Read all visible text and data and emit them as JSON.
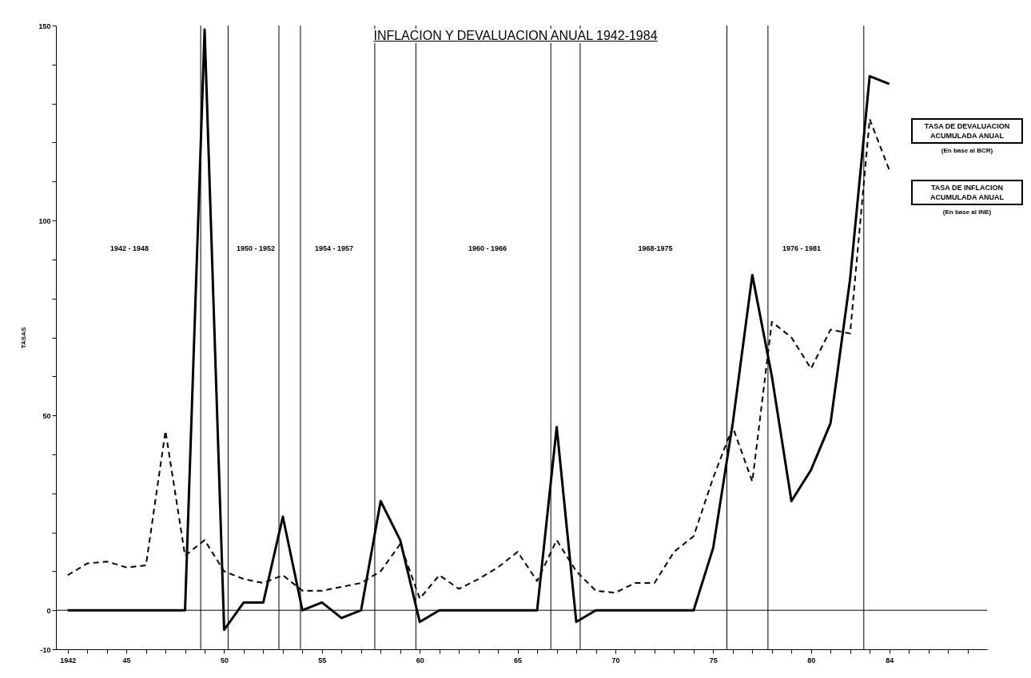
{
  "chart_data": {
    "type": "line",
    "title": "INFLACION Y DEVALUACION ANUAL 1942-1984",
    "ylabel": "TASAS",
    "x": [
      1942,
      1943,
      1944,
      1945,
      1946,
      1947,
      1948,
      1949,
      1950,
      1951,
      1952,
      1953,
      1954,
      1955,
      1956,
      1957,
      1958,
      1959,
      1960,
      1961,
      1962,
      1963,
      1964,
      1965,
      1966,
      1967,
      1968,
      1969,
      1970,
      1971,
      1972,
      1973,
      1974,
      1975,
      1976,
      1977,
      1978,
      1979,
      1980,
      1981,
      1982,
      1983,
      1984
    ],
    "series": [
      {
        "name": "TASA DE DEVALUACION ACUMULADA ANUAL",
        "color": "#000000",
        "line_style": "solid",
        "values": [
          0,
          0,
          0,
          0,
          0,
          0,
          0,
          149,
          -5,
          2,
          2,
          24,
          0,
          2,
          -2,
          0,
          28,
          18,
          -3,
          0,
          0,
          0,
          0,
          0,
          0,
          47,
          -3,
          0,
          0,
          0,
          0,
          0,
          0,
          16,
          48,
          86,
          60,
          28,
          36,
          48,
          85,
          137,
          135
        ]
      },
      {
        "name": "TASA DE INFLACION ACUMULADA ANUAL",
        "color": "#000000",
        "line_style": "dashed",
        "values": [
          9,
          12,
          12.5,
          11,
          11.5,
          46,
          14,
          18,
          10,
          8,
          7,
          9,
          5,
          5,
          6,
          7,
          10,
          17,
          3,
          9,
          5.5,
          8,
          11,
          15,
          7.5,
          18,
          10,
          5,
          4.5,
          7,
          7,
          15,
          19,
          34,
          47,
          33,
          74,
          70,
          62,
          72,
          71,
          126,
          113
        ]
      }
    ],
    "xlim": [
      1941.4,
      1989
    ],
    "xticks": [
      1942,
      {
        "value": 1943,
        "label": null
      },
      {
        "value": 1944,
        "label": null
      },
      {
        "value": 1945,
        "label": "45"
      },
      {
        "value": 1946,
        "label": null
      },
      {
        "value": 1947,
        "label": null
      },
      {
        "value": 1948,
        "label": null
      },
      {
        "value": 1949,
        "label": null
      },
      {
        "value": 1950,
        "label": "50"
      },
      {
        "value": 1951,
        "label": null
      },
      {
        "value": 1952,
        "label": null
      },
      {
        "value": 1953,
        "label": null
      },
      {
        "value": 1954,
        "label": null
      },
      {
        "value": 1955,
        "label": "55"
      },
      {
        "value": 1956,
        "label": null
      },
      {
        "value": 1957,
        "label": null
      },
      {
        "value": 1958,
        "label": null
      },
      {
        "value": 1959,
        "label": null
      },
      {
        "value": 1960,
        "label": "60"
      },
      {
        "value": 1961,
        "label": null
      },
      {
        "value": 1962,
        "label": null
      },
      {
        "value": 1963,
        "label": null
      },
      {
        "value": 1964,
        "label": null
      },
      {
        "value": 1965,
        "label": "65"
      },
      {
        "value": 1966,
        "label": null
      },
      {
        "value": 1967,
        "label": null
      },
      {
        "value": 1968,
        "label": null
      },
      {
        "value": 1969,
        "label": null
      },
      {
        "value": 1970,
        "label": "70"
      },
      {
        "value": 1971,
        "label": null
      },
      {
        "value": 1972,
        "label": null
      },
      {
        "value": 1973,
        "label": null
      },
      {
        "value": 1974,
        "label": null
      },
      {
        "value": 1975,
        "label": "75"
      },
      {
        "value": 1976,
        "label": null
      },
      {
        "value": 1977,
        "label": null
      },
      {
        "value": 1978,
        "label": null
      },
      {
        "value": 1979,
        "label": null
      },
      {
        "value": 1980,
        "label": "80"
      },
      {
        "value": 1981,
        "label": null
      },
      {
        "value": 1982,
        "label": null
      },
      {
        "value": 1983,
        "label": null
      },
      {
        "value": 1984,
        "label": "84"
      },
      {
        "value": 1985,
        "label": null
      },
      {
        "value": 1986,
        "label": null
      },
      {
        "value": 1987,
        "label": null
      },
      {
        "value": 1988,
        "label": null
      }
    ],
    "ylim": [
      -10,
      150
    ],
    "yticks": [
      -10,
      0,
      {
        "value": 10,
        "label": null
      },
      {
        "value": 20,
        "label": null
      },
      {
        "value": 30,
        "label": null
      },
      {
        "value": 40,
        "label": null
      },
      50,
      {
        "value": 60,
        "label": null
      },
      {
        "value": 70,
        "label": null
      },
      {
        "value": 80,
        "label": null
      },
      {
        "value": 90,
        "label": null
      },
      100,
      {
        "value": 110,
        "label": null
      },
      {
        "value": 120,
        "label": null
      },
      {
        "value": 130,
        "label": null
      },
      {
        "value": 140,
        "label": null
      },
      150
    ],
    "grid": false,
    "ref_lines": [
      {
        "axis": "y",
        "value": 0
      },
      {
        "axis": "x",
        "value": 1948.8
      },
      {
        "axis": "x",
        "value": 1950.2
      },
      {
        "axis": "x",
        "value": 1952.8
      },
      {
        "axis": "x",
        "value": 1953.9
      },
      {
        "axis": "x",
        "value": 1957.7
      },
      {
        "axis": "x",
        "value": 1959.8
      },
      {
        "axis": "x",
        "value": 1966.7
      },
      {
        "axis": "x",
        "value": 1968.2
      },
      {
        "axis": "x",
        "value": 1975.7
      },
      {
        "axis": "x",
        "value": 1977.8
      },
      {
        "axis": "x",
        "value": 1982.7
      }
    ],
    "annotations": [
      "(En base al BCR)",
      "(En base al INE)",
      "1942 - 1948",
      "1950 - 1952",
      "1954 - 1957",
      "1960 - 1966",
      "1968-1975",
      "1976 - 1981"
    ]
  }
}
